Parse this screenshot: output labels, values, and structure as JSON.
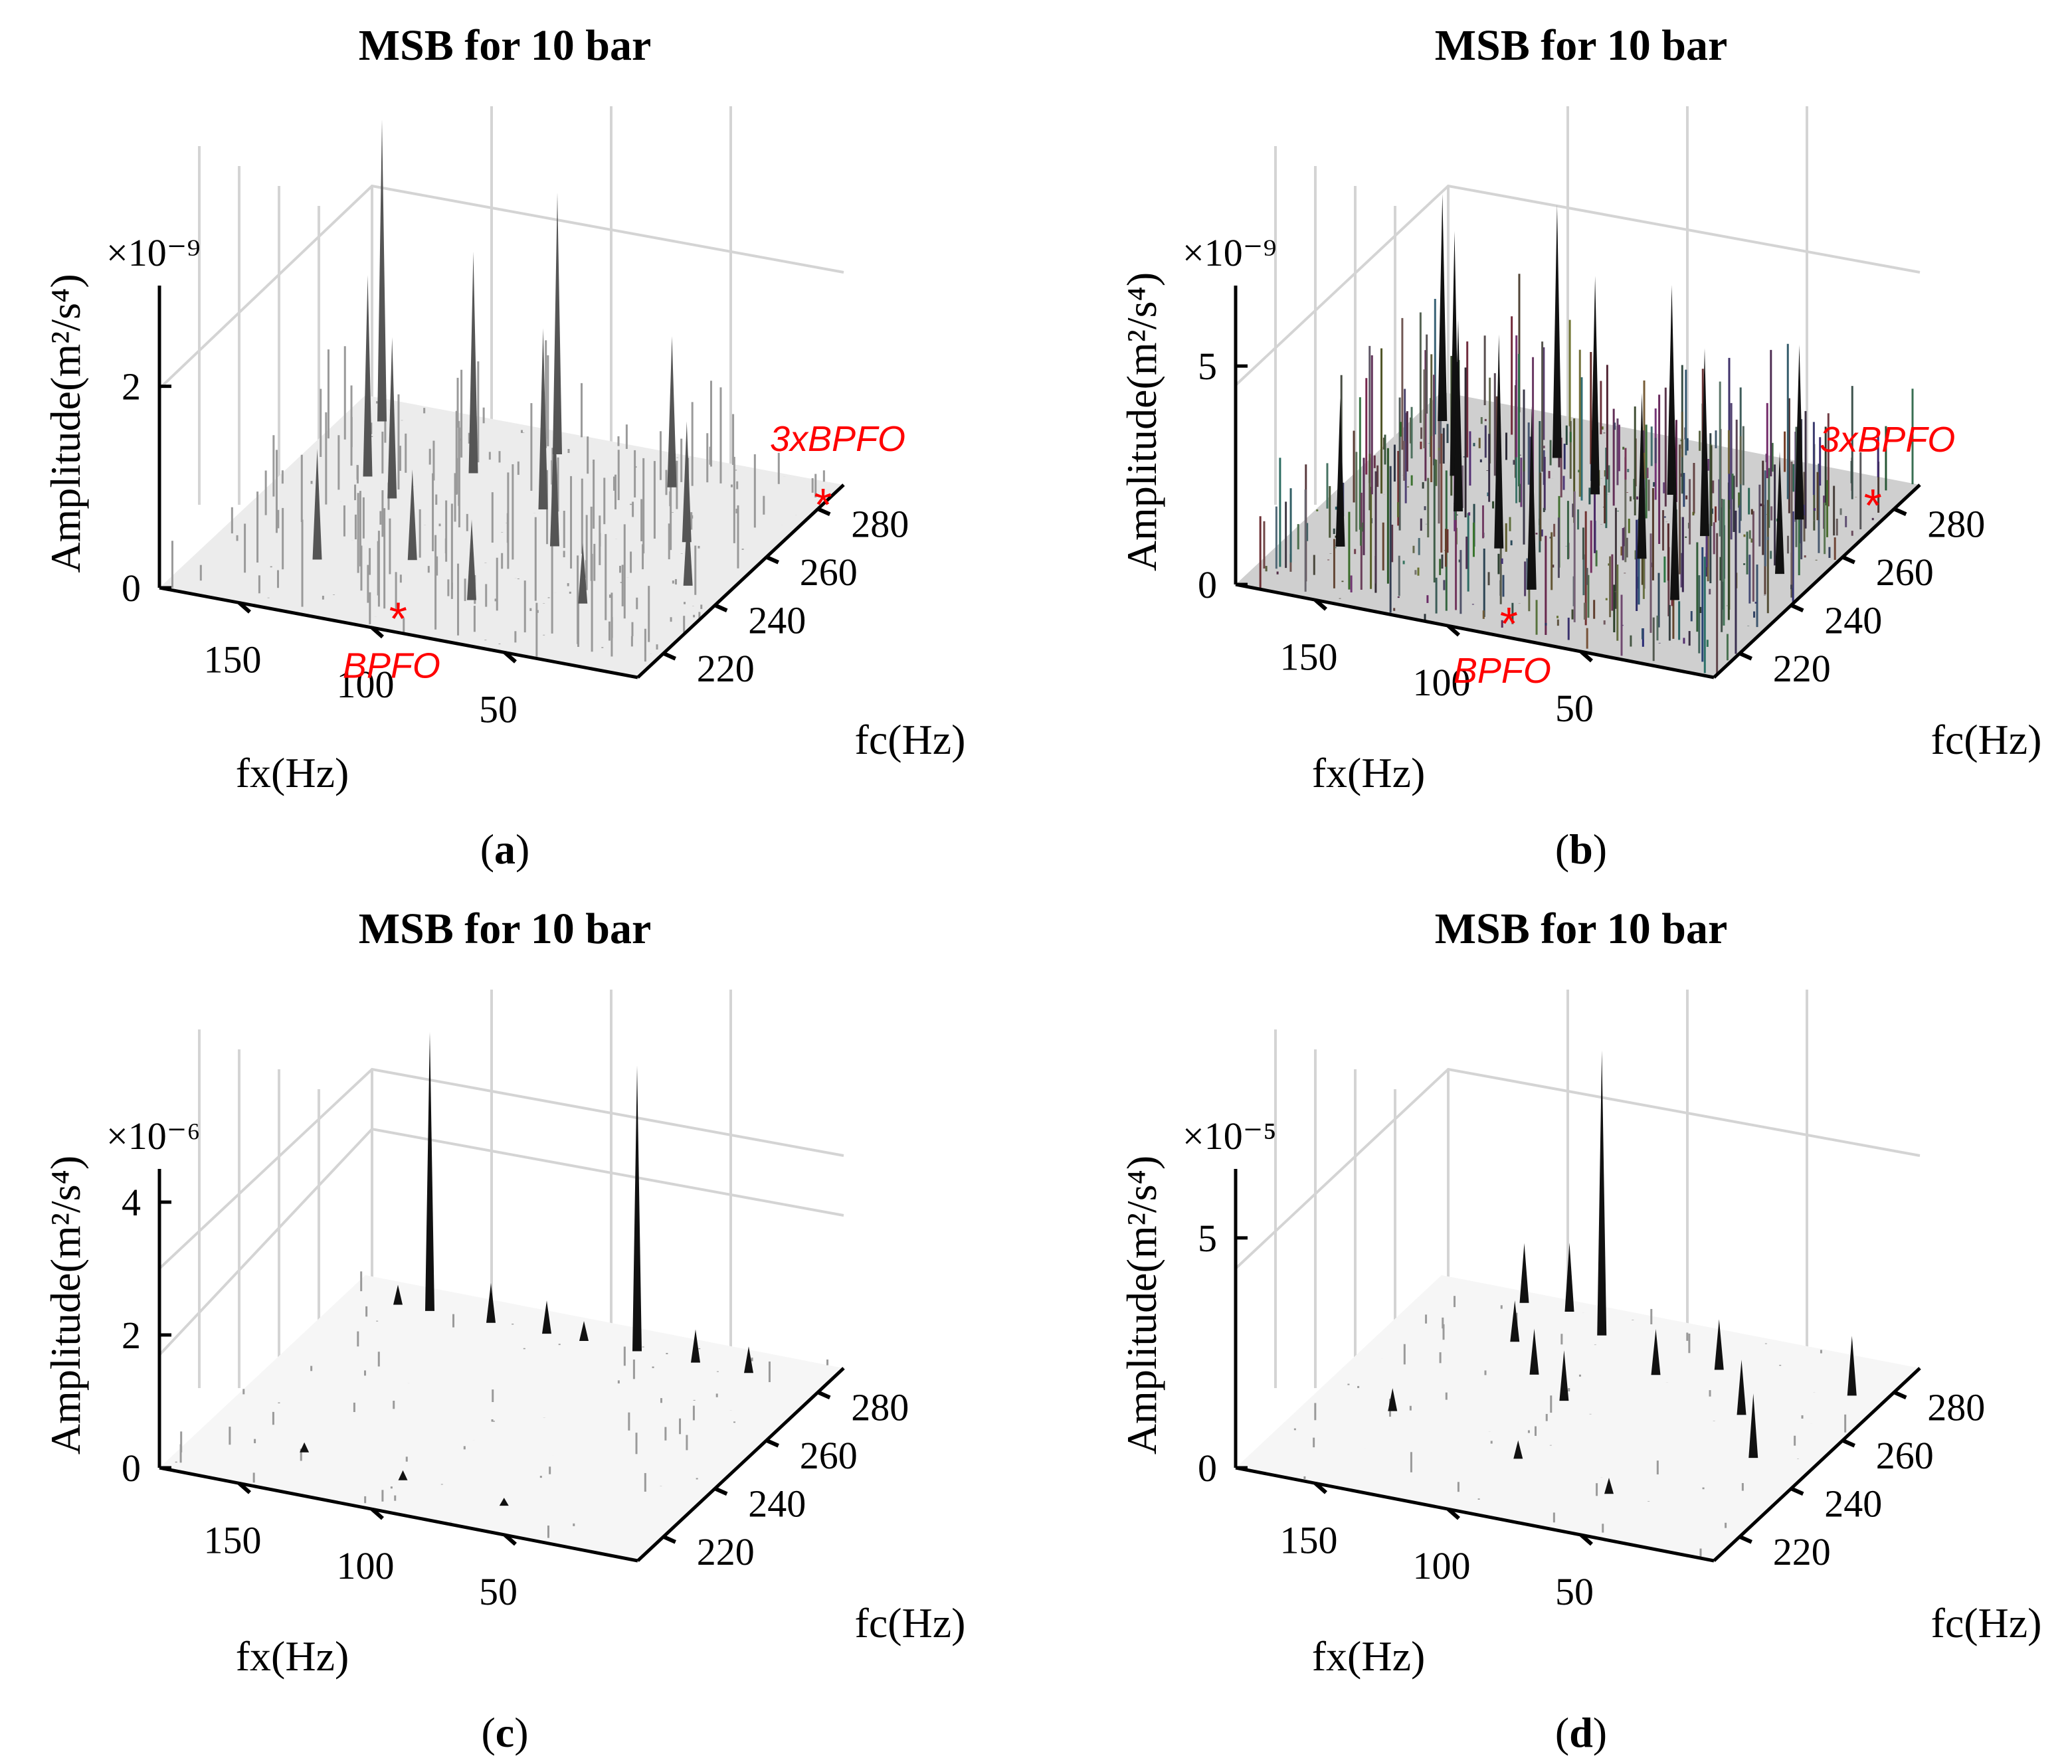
{
  "figure": {
    "panels": [
      {
        "id": "a",
        "label": "a",
        "chart_data": {
          "type": "3d-surface",
          "title": "MSB for 10 bar",
          "xlabel": "fx(Hz)",
          "ylabel": "fc(Hz)",
          "zlabel": "Amplitude(m²/s⁴)",
          "z_exponent": "×10⁻⁹",
          "x_ticks": [
            "150",
            "100",
            "50"
          ],
          "y_ticks": [
            "220",
            "240",
            "260",
            "280"
          ],
          "z_ticks": [
            "0",
            "2"
          ],
          "xlim": [
            0,
            180
          ],
          "ylim": [
            210,
            290
          ],
          "zlim": [
            0,
            3
          ],
          "shading": "light",
          "annotations": [
            {
              "text": "BPFO",
              "fx": 95,
              "fc": 215,
              "marker": "*",
              "color": "#ff0000"
            },
            {
              "text": "3xBPFO",
              "fx": 0,
              "fc": 282,
              "marker": "*",
              "color": "#ff0000"
            }
          ],
          "peaks": [
            {
              "fx": 166,
              "fc": 282,
              "z": 3.0
            },
            {
              "fx": 152,
              "fc": 262,
              "z": 2.0
            },
            {
              "fx": 137,
              "fc": 256,
              "z": 1.6
            },
            {
              "fx": 120,
              "fc": 270,
              "z": 2.2
            },
            {
              "fx": 100,
              "fc": 282,
              "z": 2.6
            },
            {
              "fx": 86,
              "fc": 262,
              "z": 1.8
            },
            {
              "fx": 70,
              "fc": 250,
              "z": 1.4
            },
            {
              "fx": 53,
              "fc": 278,
              "z": 1.5
            },
            {
              "fx": 30,
              "fc": 260,
              "z": 1.2
            },
            {
              "fx": 15,
              "fc": 245,
              "z": 0.8
            },
            {
              "fx": 140,
              "fc": 230,
              "z": 1.1
            },
            {
              "fx": 110,
              "fc": 236,
              "z": 0.9
            },
            {
              "fx": 78,
              "fc": 226,
              "z": 0.8
            },
            {
              "fx": 42,
              "fc": 232,
              "z": 0.6
            }
          ]
        }
      },
      {
        "id": "b",
        "label": "b",
        "chart_data": {
          "type": "3d-surface",
          "title": "MSB for 10 bar",
          "xlabel": "fx(Hz)",
          "ylabel": "fc(Hz)",
          "zlabel": "Amplitude(m²/s⁴)",
          "z_exponent": "×10⁻⁹",
          "x_ticks": [
            "150",
            "100",
            "50"
          ],
          "y_ticks": [
            "220",
            "240",
            "260",
            "280"
          ],
          "z_ticks": [
            "0",
            "5"
          ],
          "xlim": [
            0,
            180
          ],
          "ylim": [
            210,
            290
          ],
          "zlim": [
            0,
            6.5
          ],
          "shading": "dense",
          "annotations": [
            {
              "text": "BPFO",
              "fx": 82,
              "fc": 215,
              "marker": "*",
              "color": "#ff0000"
            },
            {
              "text": "3xBPFO",
              "fx": 8,
              "fc": 280,
              "marker": "*",
              "color": "#ff0000"
            }
          ],
          "peaks": [
            {
              "fx": 170,
              "fc": 280,
              "z": 5.2
            },
            {
              "fx": 160,
              "fc": 230,
              "z": 3.4
            },
            {
              "fx": 148,
              "fc": 262,
              "z": 5.6
            },
            {
              "fx": 135,
              "fc": 250,
              "z": 4.4
            },
            {
              "fx": 122,
              "fc": 275,
              "z": 5.8
            },
            {
              "fx": 110,
              "fc": 240,
              "z": 4.9
            },
            {
              "fx": 98,
              "fc": 265,
              "z": 5.0
            },
            {
              "fx": 86,
              "fc": 228,
              "z": 4.2
            },
            {
              "fx": 74,
              "fc": 270,
              "z": 4.8
            },
            {
              "fx": 62,
              "fc": 246,
              "z": 3.8
            },
            {
              "fx": 50,
              "fc": 258,
              "z": 4.3
            },
            {
              "fx": 38,
              "fc": 234,
              "z": 3.6
            },
            {
              "fx": 26,
              "fc": 270,
              "z": 4.0
            },
            {
              "fx": 14,
              "fc": 250,
              "z": 2.8
            }
          ]
        }
      },
      {
        "id": "c",
        "label": "c",
        "chart_data": {
          "type": "3d-surface",
          "title": "MSB for 10 bar",
          "xlabel": "fx(Hz)",
          "ylabel": "fc(Hz)",
          "zlabel": "Amplitude(m²/s⁴)",
          "z_exponent": "×10⁻⁶",
          "x_ticks": [
            "150",
            "100",
            "50"
          ],
          "y_ticks": [
            "220",
            "240",
            "260",
            "280"
          ],
          "z_ticks": [
            "0",
            "2",
            "4"
          ],
          "xlim": [
            0,
            180
          ],
          "ylim": [
            210,
            290
          ],
          "zlim": [
            0,
            4.5
          ],
          "shading": "sparse",
          "annotations": [],
          "peaks": [
            {
              "fx": 148,
              "fc": 282,
              "z": 4.2
            },
            {
              "fx": 70,
              "fc": 282,
              "z": 4.3
            },
            {
              "fx": 125,
              "fc": 282,
              "z": 0.6
            },
            {
              "fx": 104,
              "fc": 282,
              "z": 0.5
            },
            {
              "fx": 48,
              "fc": 282,
              "z": 0.5
            },
            {
              "fx": 28,
              "fc": 282,
              "z": 0.4
            },
            {
              "fx": 90,
              "fc": 282,
              "z": 0.3
            },
            {
              "fx": 160,
              "fc": 282,
              "z": 0.3
            },
            {
              "fx": 140,
              "fc": 225,
              "z": 0.15
            },
            {
              "fx": 100,
              "fc": 222,
              "z": 0.15
            },
            {
              "fx": 60,
              "fc": 220,
              "z": 0.12
            }
          ]
        }
      },
      {
        "id": "d",
        "label": "d",
        "chart_data": {
          "type": "3d-surface",
          "title": "MSB for 10 bar",
          "xlabel": "fx(Hz)",
          "ylabel": "fc(Hz)",
          "zlabel": "Amplitude(m²/s⁴)",
          "z_exponent": "×10⁻⁵",
          "x_ticks": [
            "150",
            "100",
            "50"
          ],
          "y_ticks": [
            "220",
            "240",
            "260",
            "280"
          ],
          "z_ticks": [
            "0",
            "5"
          ],
          "xlim": [
            0,
            180
          ],
          "ylim": [
            210,
            290
          ],
          "zlim": [
            0,
            6.5
          ],
          "shading": "sparse",
          "annotations": [],
          "peaks": [
            {
              "fx": 110,
              "fc": 280,
              "z": 6.2
            },
            {
              "fx": 145,
              "fc": 286,
              "z": 1.3
            },
            {
              "fx": 128,
              "fc": 286,
              "z": 1.5
            },
            {
              "fx": 135,
              "fc": 272,
              "z": 0.9
            },
            {
              "fx": 118,
              "fc": 262,
              "z": 1.0
            },
            {
              "fx": 100,
              "fc": 255,
              "z": 1.1
            },
            {
              "fx": 80,
              "fc": 270,
              "z": 1.0
            },
            {
              "fx": 62,
              "fc": 276,
              "z": 1.1
            },
            {
              "fx": 40,
              "fc": 262,
              "z": 1.2
            },
            {
              "fx": 22,
              "fc": 248,
              "z": 1.4
            },
            {
              "fx": 12,
              "fc": 276,
              "z": 1.3
            },
            {
              "fx": 150,
              "fc": 240,
              "z": 0.5
            },
            {
              "fx": 95,
              "fc": 232,
              "z": 0.4
            },
            {
              "fx": 55,
              "fc": 226,
              "z": 0.35
            }
          ]
        }
      }
    ]
  }
}
